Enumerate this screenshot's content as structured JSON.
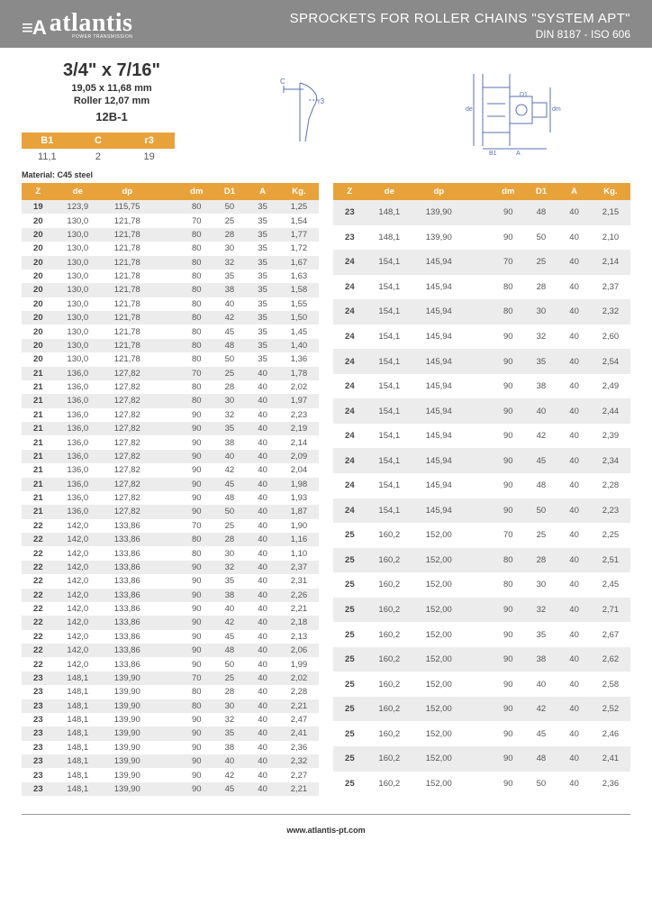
{
  "brand": {
    "mark": "≡A",
    "name": "atlantis",
    "tagline": "POWER TRANSMISSION"
  },
  "header": {
    "title": "SPROCKETS FOR ROLLER CHAINS \"SYSTEM APT\"",
    "subtitle": "DIN 8187 - ISO 606"
  },
  "spec": {
    "size_in": "3/4\" x 7/16\"",
    "size_mm": "19,05 x 11,68 mm",
    "roller": "Roller 12,07 mm",
    "code": "12B-1"
  },
  "mini": {
    "headers": [
      "B1",
      "C",
      "r3"
    ],
    "row": [
      "11,1",
      "2",
      "19"
    ]
  },
  "material": "Material: C45 steel",
  "columns": [
    "Z",
    "de",
    "dp",
    "",
    "dm",
    "D1",
    "A",
    "Kg."
  ],
  "left_rows": [
    [
      "19",
      "123,9",
      "115,75",
      "80",
      "50",
      "35",
      "1,25"
    ],
    [
      "20",
      "130,0",
      "121,78",
      "70",
      "25",
      "35",
      "1,54"
    ],
    [
      "20",
      "130,0",
      "121,78",
      "80",
      "28",
      "35",
      "1,77"
    ],
    [
      "20",
      "130,0",
      "121,78",
      "80",
      "30",
      "35",
      "1,72"
    ],
    [
      "20",
      "130,0",
      "121,78",
      "80",
      "32",
      "35",
      "1,67"
    ],
    [
      "20",
      "130,0",
      "121,78",
      "80",
      "35",
      "35",
      "1,63"
    ],
    [
      "20",
      "130,0",
      "121,78",
      "80",
      "38",
      "35",
      "1,58"
    ],
    [
      "20",
      "130,0",
      "121,78",
      "80",
      "40",
      "35",
      "1,55"
    ],
    [
      "20",
      "130,0",
      "121,78",
      "80",
      "42",
      "35",
      "1,50"
    ],
    [
      "20",
      "130,0",
      "121,78",
      "80",
      "45",
      "35",
      "1,45"
    ],
    [
      "20",
      "130,0",
      "121,78",
      "80",
      "48",
      "35",
      "1,40"
    ],
    [
      "20",
      "130,0",
      "121,78",
      "80",
      "50",
      "35",
      "1,36"
    ],
    [
      "21",
      "136,0",
      "127,82",
      "70",
      "25",
      "40",
      "1,78"
    ],
    [
      "21",
      "136,0",
      "127,82",
      "80",
      "28",
      "40",
      "2,02"
    ],
    [
      "21",
      "136,0",
      "127,82",
      "80",
      "30",
      "40",
      "1,97"
    ],
    [
      "21",
      "136,0",
      "127,82",
      "90",
      "32",
      "40",
      "2,23"
    ],
    [
      "21",
      "136,0",
      "127,82",
      "90",
      "35",
      "40",
      "2,19"
    ],
    [
      "21",
      "136,0",
      "127,82",
      "90",
      "38",
      "40",
      "2,14"
    ],
    [
      "21",
      "136,0",
      "127,82",
      "90",
      "40",
      "40",
      "2,09"
    ],
    [
      "21",
      "136,0",
      "127,82",
      "90",
      "42",
      "40",
      "2,04"
    ],
    [
      "21",
      "136,0",
      "127,82",
      "90",
      "45",
      "40",
      "1,98"
    ],
    [
      "21",
      "136,0",
      "127,82",
      "90",
      "48",
      "40",
      "1,93"
    ],
    [
      "21",
      "136,0",
      "127,82",
      "90",
      "50",
      "40",
      "1,87"
    ],
    [
      "22",
      "142,0",
      "133,86",
      "70",
      "25",
      "40",
      "1,90"
    ],
    [
      "22",
      "142,0",
      "133,86",
      "80",
      "28",
      "40",
      "1,16"
    ],
    [
      "22",
      "142,0",
      "133,86",
      "80",
      "30",
      "40",
      "1,10"
    ],
    [
      "22",
      "142,0",
      "133,86",
      "90",
      "32",
      "40",
      "2,37"
    ],
    [
      "22",
      "142,0",
      "133,86",
      "90",
      "35",
      "40",
      "2,31"
    ],
    [
      "22",
      "142,0",
      "133,86",
      "90",
      "38",
      "40",
      "2,26"
    ],
    [
      "22",
      "142,0",
      "133,86",
      "90",
      "40",
      "40",
      "2,21"
    ],
    [
      "22",
      "142,0",
      "133,86",
      "90",
      "42",
      "40",
      "2,18"
    ],
    [
      "22",
      "142,0",
      "133,86",
      "90",
      "45",
      "40",
      "2,13"
    ],
    [
      "22",
      "142,0",
      "133,86",
      "90",
      "48",
      "40",
      "2,06"
    ],
    [
      "22",
      "142,0",
      "133,86",
      "90",
      "50",
      "40",
      "1,99"
    ],
    [
      "23",
      "148,1",
      "139,90",
      "70",
      "25",
      "40",
      "2,02"
    ],
    [
      "23",
      "148,1",
      "139,90",
      "80",
      "28",
      "40",
      "2,28"
    ],
    [
      "23",
      "148,1",
      "139,90",
      "80",
      "30",
      "40",
      "2,21"
    ],
    [
      "23",
      "148,1",
      "139,90",
      "90",
      "32",
      "40",
      "2,47"
    ],
    [
      "23",
      "148,1",
      "139,90",
      "90",
      "35",
      "40",
      "2,41"
    ],
    [
      "23",
      "148,1",
      "139,90",
      "90",
      "38",
      "40",
      "2,36"
    ],
    [
      "23",
      "148,1",
      "139,90",
      "90",
      "40",
      "40",
      "2,32"
    ],
    [
      "23",
      "148,1",
      "139,90",
      "90",
      "42",
      "40",
      "2,27"
    ],
    [
      "23",
      "148,1",
      "139,90",
      "90",
      "45",
      "40",
      "2,21"
    ]
  ],
  "right_rows": [
    [
      "23",
      "148,1",
      "139,90",
      "90",
      "48",
      "40",
      "2,15"
    ],
    [
      "23",
      "148,1",
      "139,90",
      "90",
      "50",
      "40",
      "2,10"
    ],
    [
      "24",
      "154,1",
      "145,94",
      "70",
      "25",
      "40",
      "2,14"
    ],
    [
      "24",
      "154,1",
      "145,94",
      "80",
      "28",
      "40",
      "2,37"
    ],
    [
      "24",
      "154,1",
      "145,94",
      "80",
      "30",
      "40",
      "2,32"
    ],
    [
      "24",
      "154,1",
      "145,94",
      "90",
      "32",
      "40",
      "2,60"
    ],
    [
      "24",
      "154,1",
      "145,94",
      "90",
      "35",
      "40",
      "2,54"
    ],
    [
      "24",
      "154,1",
      "145,94",
      "90",
      "38",
      "40",
      "2,49"
    ],
    [
      "24",
      "154,1",
      "145,94",
      "90",
      "40",
      "40",
      "2,44"
    ],
    [
      "24",
      "154,1",
      "145,94",
      "90",
      "42",
      "40",
      "2,39"
    ],
    [
      "24",
      "154,1",
      "145,94",
      "90",
      "45",
      "40",
      "2,34"
    ],
    [
      "24",
      "154,1",
      "145,94",
      "90",
      "48",
      "40",
      "2,28"
    ],
    [
      "24",
      "154,1",
      "145,94",
      "90",
      "50",
      "40",
      "2,23"
    ],
    [
      "25",
      "160,2",
      "152,00",
      "70",
      "25",
      "40",
      "2,25"
    ],
    [
      "25",
      "160,2",
      "152,00",
      "80",
      "28",
      "40",
      "2,51"
    ],
    [
      "25",
      "160,2",
      "152,00",
      "80",
      "30",
      "40",
      "2,45"
    ],
    [
      "25",
      "160,2",
      "152,00",
      "90",
      "32",
      "40",
      "2,71"
    ],
    [
      "25",
      "160,2",
      "152,00",
      "90",
      "35",
      "40",
      "2,67"
    ],
    [
      "25",
      "160,2",
      "152,00",
      "90",
      "38",
      "40",
      "2,62"
    ],
    [
      "25",
      "160,2",
      "152,00",
      "90",
      "40",
      "40",
      "2,58"
    ],
    [
      "25",
      "160,2",
      "152,00",
      "90",
      "42",
      "40",
      "2,52"
    ],
    [
      "25",
      "160,2",
      "152,00",
      "90",
      "45",
      "40",
      "2,46"
    ],
    [
      "25",
      "160,2",
      "152,00",
      "90",
      "48",
      "40",
      "2,41"
    ],
    [
      "25",
      "160,2",
      "152,00",
      "90",
      "50",
      "40",
      "2,36"
    ]
  ],
  "footer_url": "www.atlantis-pt.com",
  "colors": {
    "header_bg": "#8a8a8a",
    "accent": "#e8a23a",
    "row_alt": "#ececec",
    "text": "#555555"
  },
  "col_widths_pct": [
    10,
    14,
    16,
    8,
    10,
    10,
    10,
    12
  ]
}
